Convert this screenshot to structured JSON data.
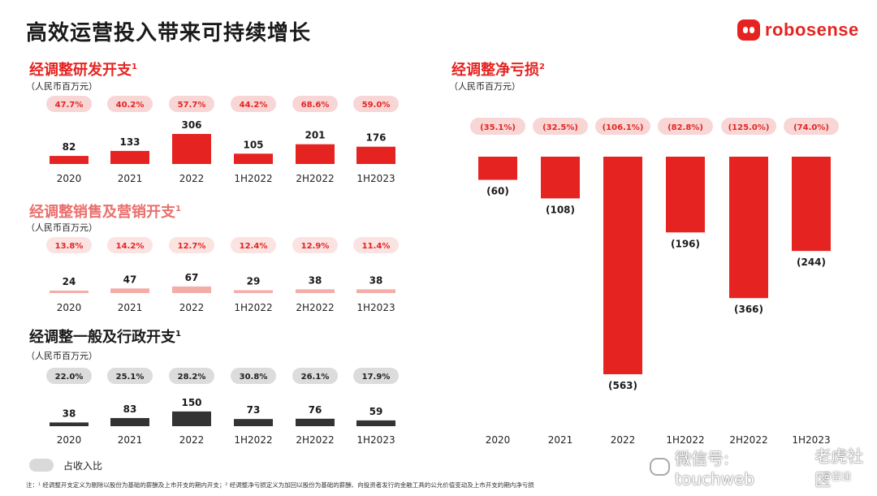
{
  "title": "高效运营投入带来可持续增长",
  "logo": {
    "text": "robosense",
    "icon": "robot-face-icon"
  },
  "colors": {
    "red": "#e52421",
    "pink": "#f4aca8",
    "dark": "#333333",
    "pill_red": "#f8d6d5",
    "pill_pink": "#fbe3e2",
    "pill_grey": "#dcdcdc"
  },
  "chart_data": [
    {
      "type": "bar",
      "title": "经调整研发开支",
      "sup": "1",
      "unit": "（人民币百万元）",
      "categories": [
        "2020",
        "2021",
        "2022",
        "1H2022",
        "2H2022",
        "1H2023"
      ],
      "values": [
        82,
        133,
        306,
        105,
        201,
        176
      ],
      "value_labels": [
        "82",
        "133",
        "306",
        "105",
        "201",
        "176"
      ],
      "revenue_share": [
        "47.7%",
        "40.2%",
        "57.7%",
        "44.2%",
        "68.6%",
        "59.0%"
      ],
      "ylim": [
        0,
        306
      ]
    },
    {
      "type": "bar",
      "title": "经调整销售及营销开支",
      "sup": "1",
      "unit": "（人民币百万元）",
      "categories": [
        "2020",
        "2021",
        "2022",
        "1H2022",
        "2H2022",
        "1H2023"
      ],
      "values": [
        24,
        47,
        67,
        29,
        38,
        38
      ],
      "value_labels": [
        "24",
        "47",
        "67",
        "29",
        "38",
        "38"
      ],
      "revenue_share": [
        "13.8%",
        "14.2%",
        "12.7%",
        "12.4%",
        "12.9%",
        "11.4%"
      ],
      "ylim": [
        0,
        306
      ]
    },
    {
      "type": "bar",
      "title": "经调整一般及行政开支",
      "sup": "1",
      "unit": "（人民币百万元）",
      "categories": [
        "2020",
        "2021",
        "2022",
        "1H2022",
        "2H2022",
        "1H2023"
      ],
      "values": [
        38,
        83,
        150,
        73,
        76,
        59
      ],
      "value_labels": [
        "38",
        "83",
        "150",
        "73",
        "76",
        "59"
      ],
      "revenue_share": [
        "22.0%",
        "25.1%",
        "28.2%",
        "30.8%",
        "26.1%",
        "17.9%"
      ],
      "ylim": [
        0,
        306
      ]
    },
    {
      "type": "bar",
      "title": "经调整净亏损",
      "sup": "2",
      "unit": "（人民币百万元）",
      "categories": [
        "2020",
        "2021",
        "2022",
        "1H2022",
        "2H2022",
        "1H2023"
      ],
      "values": [
        -60,
        -108,
        -563,
        -196,
        -366,
        -244
      ],
      "value_labels": [
        "(60)",
        "(108)",
        "(563)",
        "(196)",
        "(366)",
        "(244)"
      ],
      "revenue_share": [
        "(35.1%)",
        "(32.5%)",
        "(106.1%)",
        "(82.8%)",
        "(125.0%)",
        "(74.0%)"
      ],
      "ylim": [
        -563,
        0
      ]
    }
  ],
  "legend": {
    "label": "占收入比"
  },
  "footnote": "注：¹ 经调整开支定义为剔除以股份为基础的薪酬及上市开支的期内开支；² 经调整净亏损定义为加回以股份为基础的薪酬、向投资者发行的金融工具的公允价值变动及上市开支的期内净亏损",
  "watermark": {
    "text": "微信号: touchweb",
    "brand": "老虎社区",
    "sub": "@雷递"
  }
}
